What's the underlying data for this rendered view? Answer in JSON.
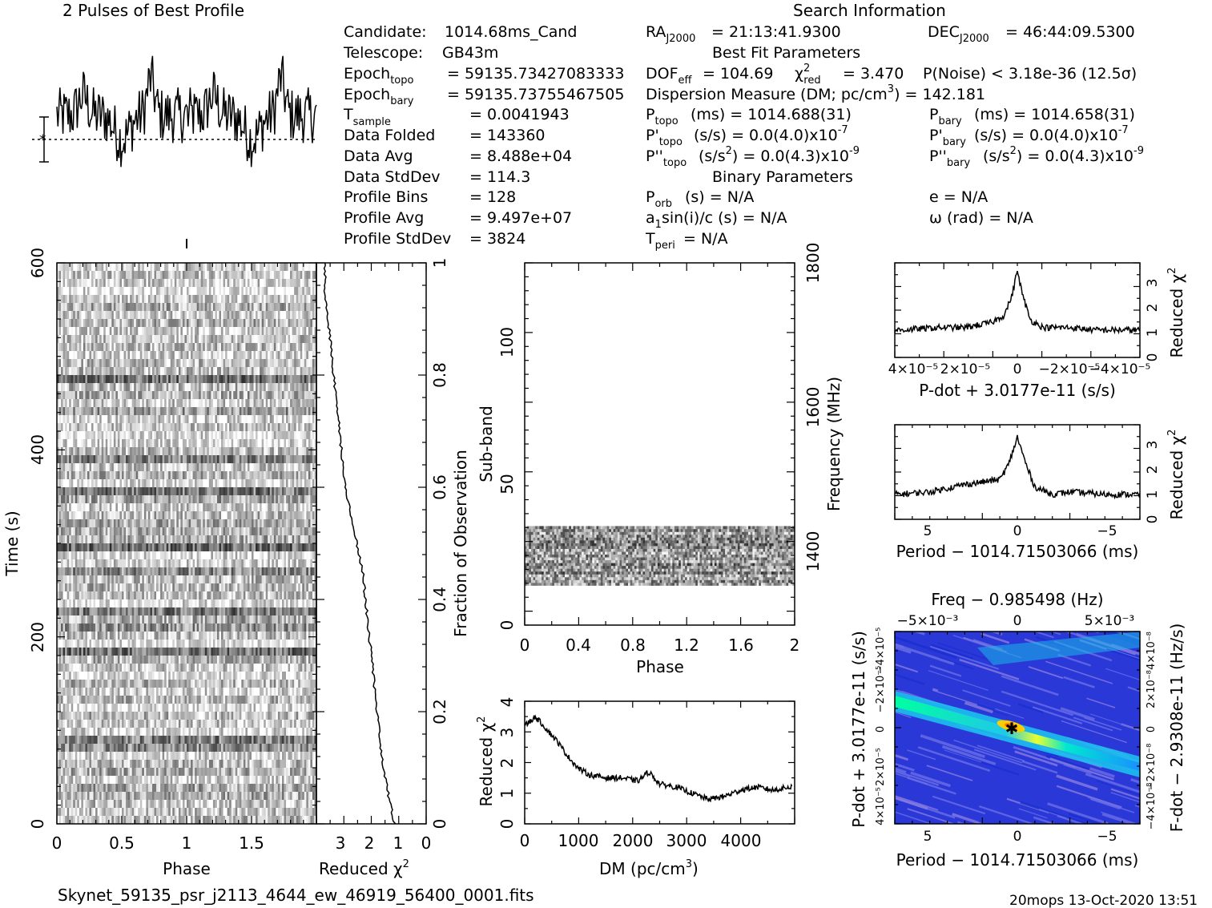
{
  "title_left": "2 Pulses of Best Profile",
  "title_right": "Search Information",
  "candidate_info": [
    {
      "label": "Candidate:",
      "value": "1014.68ms_Cand"
    },
    {
      "label": "Telescope:",
      "value": "GB43m"
    },
    {
      "label": "Epoch",
      "sub": "topo",
      "value": "= 59135.73427083333"
    },
    {
      "label": "Epoch",
      "sub": "bary",
      "value": "= 59135.73755467505"
    },
    {
      "label": "T",
      "sub": "sample",
      "value": "=   0.0041943"
    },
    {
      "label": "Data Folded",
      "value": "=   143360"
    },
    {
      "label": "Data Avg",
      "value": "=   8.488e+04"
    },
    {
      "label": "Data StdDev",
      "value": "=   114.3"
    },
    {
      "label": "Profile Bins",
      "value": "=   128"
    },
    {
      "label": "Profile Avg",
      "value": "=   9.497e+07"
    },
    {
      "label": "Profile StdDev",
      "value": "=   3824"
    }
  ],
  "search_info": {
    "ra": "= 21:13:41.9300",
    "dec": "= 46:44:09.5300",
    "best_fit_header": "Best Fit Parameters",
    "dof": "DOF",
    "dof_sub": "eff",
    "dof_value": "= 104.69",
    "chi2_value": "= 3.470",
    "pnoise": "P(Noise) < 3.18e-36  (12.5σ)",
    "dm_text": "Dispersion Measure (DM; pc/cm",
    "dm_value": ") = 142.181",
    "p_topo": "(ms) =  1014.688(31)",
    "p_bary": "(ms) =  1014.658(31)",
    "pd_topo": "(s/s) = 0.0(4.0)x10",
    "pd_bary": "(s/s) = 0.0(4.0)x10",
    "pd_exp": "-7",
    "pdd_topo": "(s/s",
    "pdd_topo_val": ") = 0.0(4.3)x10",
    "pdd_exp": "-9",
    "binary_header": "Binary Parameters",
    "p_orb": "(s) = N/A",
    "e": "e = N/A",
    "a1sini": "a",
    "a1sini_rest": "sin(i)/c (s) = N/A",
    "omega": "ω (rad) = N/A",
    "t_peri": "= N/A"
  },
  "chart_data": [
    {
      "type": "line",
      "name": "profile",
      "title": "2 Pulses of Best Profile",
      "xlim": [
        0,
        2
      ],
      "note": "two cycles of pulse profile"
    },
    {
      "type": "heatmap",
      "name": "time-phase",
      "xlabel": "Phase",
      "ylabel": "Time (s)",
      "xticks": [
        "0",
        "0.5",
        "1",
        "1.5"
      ],
      "yticks": [
        "0",
        "200",
        "400",
        "600"
      ],
      "xlim": [
        0,
        2
      ],
      "ylim": [
        0,
        600
      ]
    },
    {
      "type": "line",
      "name": "reduced-chi2-vs-time",
      "xlabel": "Reduced χ²",
      "ylabel": "Fraction of Observation",
      "xticks": [
        "3",
        "2",
        "1",
        "0"
      ],
      "yticks": [
        "0",
        "0.2",
        "0.4",
        "0.6",
        "0.8",
        "1"
      ],
      "fraction": [
        0,
        0.05,
        0.1,
        0.15,
        0.2,
        0.25,
        0.3,
        0.35,
        0.4,
        0.45,
        0.5,
        0.55,
        0.6,
        0.65,
        0.7,
        0.75,
        0.8,
        0.85,
        0.9,
        0.95,
        1.0
      ],
      "chi2": [
        1.1,
        1.3,
        1.5,
        1.6,
        1.7,
        1.8,
        1.9,
        2.0,
        2.1,
        2.2,
        2.4,
        2.6,
        2.8,
        2.9,
        3.0,
        3.1,
        3.2,
        3.3,
        3.4,
        3.5,
        3.5
      ]
    },
    {
      "type": "heatmap",
      "name": "subband-phase",
      "xlabel": "Phase",
      "ylabel": "Sub-band",
      "y2label": "Frequency (MHz)",
      "xticks": [
        "0",
        "0.4",
        "0.8",
        "1.2",
        "1.6",
        "2"
      ],
      "yticks": [
        "0",
        "50",
        "100"
      ],
      "y2ticks": [
        "1400",
        "1600",
        "1800"
      ],
      "xlim": [
        0,
        2
      ],
      "ylim": [
        0,
        128
      ],
      "active_subbands": [
        14,
        35
      ]
    },
    {
      "type": "line",
      "name": "reduced-chi2-vs-dm",
      "xlabel": "DM (pc/cm³)",
      "ylabel": "Reduced χ²",
      "xticks": [
        "0",
        "1000",
        "2000",
        "3000",
        "4000"
      ],
      "yticks": [
        "0",
        "1",
        "2",
        "3",
        "4"
      ],
      "xlim": [
        0,
        5000
      ],
      "ylim": [
        0,
        4
      ],
      "x": [
        0,
        200,
        400,
        600,
        800,
        1000,
        1200,
        1500,
        1800,
        2100,
        2300,
        2500,
        2800,
        3100,
        3400,
        3700,
        4000,
        4300,
        4600,
        4900
      ],
      "y": [
        3.2,
        3.5,
        3.1,
        2.7,
        2.2,
        1.8,
        1.6,
        1.5,
        1.5,
        1.4,
        1.7,
        1.3,
        1.2,
        1.0,
        0.8,
        0.9,
        1.1,
        1.2,
        1.1,
        1.2
      ]
    },
    {
      "type": "line",
      "name": "reduced-chi2-vs-pdot",
      "xlabel": "P-dot + 3.0177e-11 (s/s)",
      "ylabel": "Reduced χ²",
      "xticks": [
        "4×10⁻⁵",
        "2×10⁻⁵",
        "0",
        "−2×10⁻⁵",
        "−4×10⁻⁵"
      ],
      "yticks": [
        "0",
        "1",
        "2",
        "3"
      ],
      "x": [
        4.5,
        3,
        2,
        1,
        0.5,
        0.2,
        0,
        -0.2,
        -0.5,
        -1,
        -2,
        -3,
        -4.5
      ],
      "y": [
        1.1,
        1.2,
        1.2,
        1.4,
        1.7,
        2.5,
        3.5,
        2.5,
        1.5,
        1.2,
        1.2,
        1.1,
        1.1
      ]
    },
    {
      "type": "line",
      "name": "reduced-chi2-vs-period",
      "xlabel": "Period − 1014.71503066 (ms)",
      "ylabel": "Reduced χ²",
      "xticks": [
        "5",
        "0",
        "−5"
      ],
      "yticks": [
        "0",
        "1",
        "2",
        "3"
      ],
      "x": [
        7,
        5,
        3,
        2,
        1,
        0.5,
        0,
        -0.5,
        -1,
        -2,
        -3,
        -5,
        -7
      ],
      "y": [
        1.0,
        1.1,
        1.4,
        1.5,
        1.6,
        2.2,
        3.3,
        2.2,
        1.3,
        1.0,
        1.1,
        1.0,
        1.0
      ]
    },
    {
      "type": "heatmap",
      "name": "period-pdot",
      "title": "Freq − 0.985498 (Hz)",
      "xlabel": "Period − 1014.71503066 (ms)",
      "ylabel": "P-dot + 3.0177e-11 (s/s)",
      "y2label": "F-dot − 2.9308e-11 (Hz/s)",
      "xticks": [
        "5",
        "0",
        "−5"
      ],
      "x2ticks": [
        "−5×10⁻³",
        "0",
        "5×10⁻³"
      ],
      "yticks": [
        "4×10⁻⁵",
        "2×10⁻⁵",
        "0",
        "−2×10⁻⁵",
        "−4×10⁻⁵"
      ],
      "y2ticks": [
        "−4×10⁻⁸",
        "−2×10⁻⁸",
        "0",
        "2×10⁻⁸",
        "4×10⁻⁸"
      ]
    }
  ],
  "footer": {
    "filename": "Skynet_59135_psr_j2113_4644_ew_46919_56400_0001.fits",
    "stamp": "20mops 13-Oct-2020 13:51"
  }
}
